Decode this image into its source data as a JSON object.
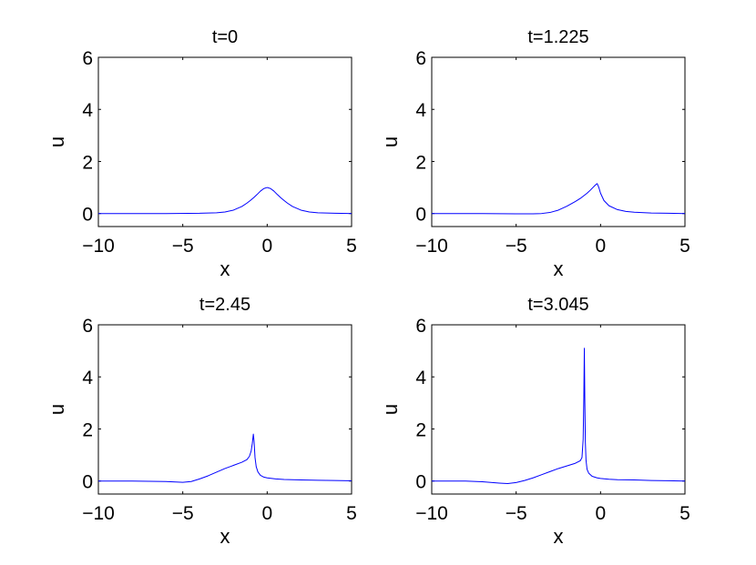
{
  "chart_data": [
    {
      "type": "line",
      "title": "t=0",
      "xlabel": "x",
      "ylabel": "u",
      "xlim": [
        -10,
        5
      ],
      "ylim": [
        -0.5,
        6
      ],
      "xticks": [
        -10,
        -5,
        0,
        5
      ],
      "xtick_labels": [
        "−10",
        "−5",
        "0",
        "5"
      ],
      "yticks": [
        0,
        2,
        4,
        6
      ],
      "ytick_labels": [
        "0",
        "2",
        "4",
        "6"
      ],
      "grid": false,
      "series": [
        {
          "color": "#0000ff",
          "x": [
            -10,
            -8,
            -6,
            -4,
            -3,
            -2.5,
            -2,
            -1.5,
            -1.2,
            -1,
            -0.8,
            -0.6,
            -0.4,
            -0.2,
            0,
            0.2,
            0.4,
            0.6,
            0.8,
            1,
            1.2,
            1.5,
            2,
            2.5,
            3,
            4,
            5
          ],
          "y": [
            0,
            0,
            0,
            0.01,
            0.03,
            0.06,
            0.13,
            0.27,
            0.4,
            0.5,
            0.61,
            0.73,
            0.86,
            0.96,
            1.0,
            0.96,
            0.86,
            0.73,
            0.61,
            0.5,
            0.4,
            0.27,
            0.13,
            0.06,
            0.03,
            0.01,
            0
          ]
        }
      ]
    },
    {
      "type": "line",
      "title": "t=1.225",
      "xlabel": "x",
      "ylabel": "u",
      "xlim": [
        -10,
        5
      ],
      "ylim": [
        -0.5,
        6
      ],
      "xticks": [
        -10,
        -5,
        0,
        5
      ],
      "xtick_labels": [
        "−10",
        "−5",
        "0",
        "5"
      ],
      "yticks": [
        0,
        2,
        4,
        6
      ],
      "ytick_labels": [
        "0",
        "2",
        "4",
        "6"
      ],
      "grid": false,
      "series": [
        {
          "color": "#0000ff",
          "x": [
            -10,
            -7,
            -5,
            -4,
            -3.5,
            -3,
            -2.5,
            -2,
            -1.5,
            -1.2,
            -1,
            -0.8,
            -0.6,
            -0.45,
            -0.3,
            -0.2,
            -0.1,
            0,
            0.2,
            0.5,
            1,
            1.5,
            2,
            3,
            4,
            5
          ],
          "y": [
            0,
            0,
            -0.01,
            -0.01,
            0.0,
            0.04,
            0.13,
            0.28,
            0.46,
            0.58,
            0.68,
            0.78,
            0.9,
            1.0,
            1.1,
            1.15,
            1.0,
            0.78,
            0.5,
            0.3,
            0.15,
            0.08,
            0.05,
            0.02,
            0.01,
            0
          ]
        }
      ]
    },
    {
      "type": "line",
      "title": "t=2.45",
      "xlabel": "x",
      "ylabel": "u",
      "xlim": [
        -10,
        5
      ],
      "ylim": [
        -0.5,
        6
      ],
      "xticks": [
        -10,
        -5,
        0,
        5
      ],
      "xtick_labels": [
        "−10",
        "−5",
        "0",
        "5"
      ],
      "yticks": [
        0,
        2,
        4,
        6
      ],
      "ytick_labels": [
        "0",
        "2",
        "4",
        "6"
      ],
      "grid": false,
      "series": [
        {
          "color": "#0000ff",
          "x": [
            -10,
            -8,
            -6,
            -5,
            -4.5,
            -4,
            -3.5,
            -3,
            -2.5,
            -2,
            -1.5,
            -1.2,
            -1.05,
            -0.95,
            -0.88,
            -0.82,
            -0.78,
            -0.72,
            -0.65,
            -0.55,
            -0.4,
            -0.2,
            0,
            0.5,
            1,
            2,
            3,
            4,
            5
          ],
          "y": [
            0,
            0,
            -0.02,
            -0.05,
            -0.02,
            0.08,
            0.2,
            0.34,
            0.48,
            0.6,
            0.72,
            0.82,
            0.95,
            1.15,
            1.45,
            1.8,
            1.55,
            0.9,
            0.55,
            0.35,
            0.22,
            0.15,
            0.12,
            0.08,
            0.06,
            0.04,
            0.03,
            0.02,
            0.01
          ]
        }
      ]
    },
    {
      "type": "line",
      "title": "t=3.045",
      "xlabel": "x",
      "ylabel": "u",
      "xlim": [
        -10,
        5
      ],
      "ylim": [
        -0.5,
        6
      ],
      "xticks": [
        -10,
        -5,
        0,
        5
      ],
      "xtick_labels": [
        "−10",
        "−5",
        "0",
        "5"
      ],
      "yticks": [
        0,
        2,
        4,
        6
      ],
      "ytick_labels": [
        "0",
        "2",
        "4",
        "6"
      ],
      "grid": false,
      "series": [
        {
          "color": "#0000ff",
          "x": [
            -10,
            -8,
            -7,
            -6,
            -5.5,
            -5,
            -4.5,
            -4,
            -3.5,
            -3,
            -2.5,
            -2,
            -1.5,
            -1.2,
            -1.1,
            -1.03,
            -0.99,
            -0.96,
            -0.93,
            -0.9,
            -0.86,
            -0.8,
            -0.7,
            -0.5,
            -0.2,
            0,
            0.5,
            1,
            2,
            3,
            4,
            5
          ],
          "y": [
            0,
            0,
            -0.03,
            -0.08,
            -0.1,
            -0.06,
            0.02,
            0.12,
            0.24,
            0.36,
            0.48,
            0.58,
            0.68,
            0.78,
            0.9,
            1.6,
            3.2,
            5.1,
            3.0,
            1.5,
            0.8,
            0.45,
            0.3,
            0.18,
            0.12,
            0.1,
            0.07,
            0.05,
            0.04,
            0.02,
            0.01,
            0
          ]
        }
      ]
    }
  ]
}
